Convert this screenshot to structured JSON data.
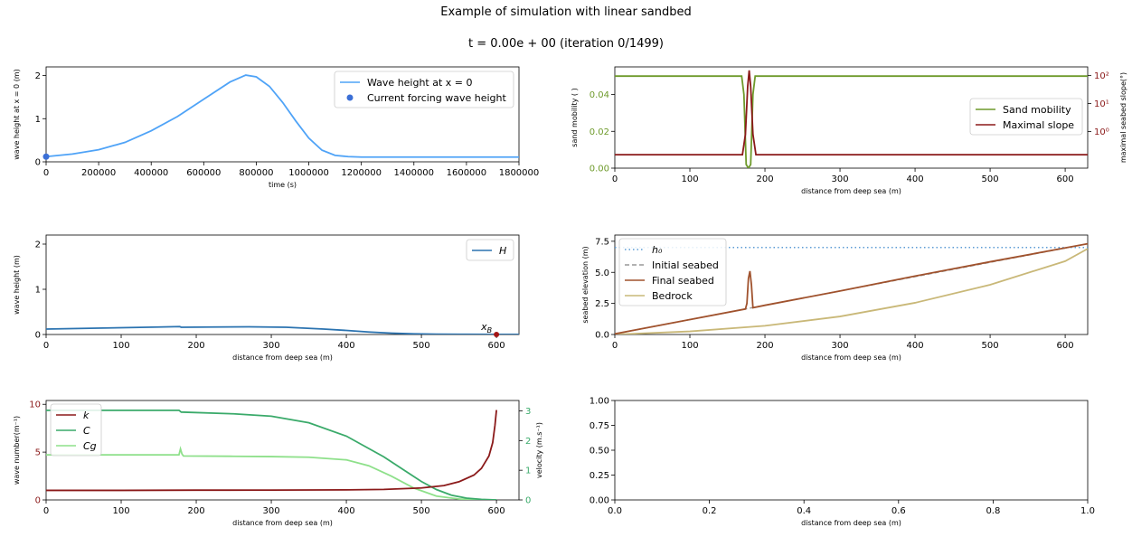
{
  "figure": {
    "title": "Example of simulation with linear sandbed",
    "subtitle": "t = 0.00e + 00  (iteration 0/1499)"
  },
  "colors": {
    "wave_forcing": "#4fa3f7",
    "forcing_dot": "#3b6fd6",
    "H": "#2b73b0",
    "mobility": "#6e9a2b",
    "slope": "#8b1a1a",
    "h0": "#5b9bd5",
    "initial": "#999999",
    "final": "#a0522d",
    "bedrock": "#c9b878",
    "k": "#8b1a1a",
    "C": "#3aaa6a",
    "Cg": "#8ee08a",
    "xB": "#a31515"
  },
  "chart_data": [
    {
      "id": "forcing",
      "type": "line",
      "xlabel": "time (s)",
      "ylabel": "wave height at x = 0 (m)",
      "xlim": [
        0,
        1800000
      ],
      "ylim": [
        0,
        2.2
      ],
      "xticks": [
        0,
        200000,
        400000,
        600000,
        800000,
        1000000,
        1200000,
        1400000,
        1600000,
        1800000
      ],
      "xtick_labels": [
        "0",
        "200000",
        "400000",
        "600000",
        "800000",
        "1000000",
        "1200000",
        "1400000",
        "1600000",
        "1800000"
      ],
      "yticks": [
        0,
        1,
        2
      ],
      "ytick_labels": [
        "0",
        "1",
        "2"
      ],
      "legend": [
        "Wave height at x = 0",
        "Current forcing wave height"
      ],
      "series": [
        {
          "name": "Wave height at x = 0",
          "x": [
            0,
            100000,
            200000,
            300000,
            400000,
            500000,
            600000,
            700000,
            760000,
            800000,
            850000,
            900000,
            950000,
            1000000,
            1050000,
            1100000,
            1150000,
            1200000,
            1400000,
            1600000,
            1800000
          ],
          "y": [
            0.12,
            0.18,
            0.28,
            0.45,
            0.72,
            1.05,
            1.45,
            1.85,
            2.01,
            1.97,
            1.75,
            1.38,
            0.95,
            0.55,
            0.27,
            0.15,
            0.12,
            0.11,
            0.11,
            0.11,
            0.11
          ]
        }
      ],
      "points": [
        {
          "name": "Current forcing wave height",
          "x": 0,
          "y": 0.12
        }
      ]
    },
    {
      "id": "mobility",
      "type": "line",
      "xlabel": "distance from deep sea (m)",
      "ylabel": "sand mobility ( )",
      "y2label": "maximal seabed slope(°)",
      "xlim": [
        0,
        630
      ],
      "ylim": [
        0,
        0.055
      ],
      "y2scale": "log",
      "y2lim": [
        0.05,
        200
      ],
      "xticks": [
        0,
        100,
        200,
        300,
        400,
        500,
        600
      ],
      "xtick_labels": [
        "0",
        "100",
        "200",
        "300",
        "400",
        "500",
        "600"
      ],
      "yticks": [
        0,
        0.02,
        0.04
      ],
      "ytick_labels": [
        "0.00",
        "0.02",
        "0.04"
      ],
      "y2ticks": [
        1,
        10,
        100
      ],
      "y2tick_labels": [
        "10⁰",
        "10¹",
        "10²"
      ],
      "legend": [
        "Sand mobility",
        "Maximal slope"
      ],
      "series": [
        {
          "name": "Sand mobility",
          "axis": "left",
          "x": [
            0,
            169,
            172,
            175,
            178,
            181,
            184,
            187,
            190,
            630
          ],
          "y": [
            0.05,
            0.05,
            0.04,
            0.002,
            0,
            0.002,
            0.04,
            0.05,
            0.05,
            0.05
          ]
        },
        {
          "name": "Maximal slope",
          "axis": "right",
          "x": [
            0,
            170,
            174,
            177,
            179,
            181,
            184,
            188,
            630
          ],
          "y": [
            0.15,
            0.15,
            0.8,
            40,
            150,
            40,
            0.8,
            0.15,
            0.15
          ]
        }
      ]
    },
    {
      "id": "H",
      "type": "line",
      "xlabel": "distance from deep sea (m)",
      "ylabel": "wave height (m)",
      "xlim": [
        0,
        630
      ],
      "ylim": [
        0,
        2.2
      ],
      "xticks": [
        0,
        100,
        200,
        300,
        400,
        500,
        600
      ],
      "xtick_labels": [
        "0",
        "100",
        "200",
        "300",
        "400",
        "500",
        "600"
      ],
      "yticks": [
        0,
        1,
        2
      ],
      "ytick_labels": [
        "0",
        "1",
        "2"
      ],
      "legend": [
        "H"
      ],
      "series": [
        {
          "name": "H",
          "x": [
            0,
            50,
            100,
            150,
            178,
            180,
            220,
            270,
            320,
            370,
            400,
            430,
            460,
            490,
            520,
            560,
            600,
            630
          ],
          "y": [
            0.12,
            0.135,
            0.15,
            0.165,
            0.175,
            0.16,
            0.165,
            0.17,
            0.16,
            0.12,
            0.09,
            0.055,
            0.03,
            0.015,
            0.008,
            0.005,
            0.003,
            0.003
          ]
        }
      ],
      "points": [
        {
          "name": "x_B",
          "x": 600,
          "y": 0.0
        }
      ]
    },
    {
      "id": "seabed",
      "type": "line",
      "xlabel": "distance from deep sea (m)",
      "ylabel": "seabed elevation (m)",
      "xlim": [
        0,
        630
      ],
      "ylim": [
        0,
        8
      ],
      "xticks": [
        0,
        100,
        200,
        300,
        400,
        500,
        600
      ],
      "xtick_labels": [
        "0",
        "100",
        "200",
        "300",
        "400",
        "500",
        "600"
      ],
      "yticks": [
        0,
        2.5,
        5,
        7.5
      ],
      "ytick_labels": [
        "0.0",
        "2.5",
        "5.0",
        "7.5"
      ],
      "legend": [
        "h₀",
        "Initial seabed",
        "Final seabed",
        "Bedrock"
      ],
      "series": [
        {
          "name": "h₀",
          "x": [
            0,
            630
          ],
          "y": [
            7.0,
            7.0
          ]
        },
        {
          "name": "Initial seabed",
          "x": [
            0,
            630
          ],
          "y": [
            0.05,
            7.3
          ]
        },
        {
          "name": "Final seabed",
          "x": [
            0,
            100,
            174,
            176,
            178,
            180,
            182,
            184,
            200,
            300,
            400,
            500,
            630
          ],
          "y": [
            0.05,
            1.2,
            2.05,
            2.5,
            4.5,
            5.1,
            4.0,
            2.15,
            2.35,
            3.5,
            4.7,
            5.85,
            7.3
          ]
        },
        {
          "name": "Bedrock",
          "x": [
            0,
            100,
            200,
            300,
            400,
            500,
            600,
            630
          ],
          "y": [
            0.0,
            0.25,
            0.7,
            1.45,
            2.55,
            4.0,
            5.9,
            6.9
          ]
        }
      ]
    },
    {
      "id": "kc",
      "type": "line",
      "xlabel": "distance from deep sea (m)",
      "ylabel": "wave number(m⁻¹)",
      "y2label": "velocity (m.s⁻¹)",
      "xlim": [
        0,
        630
      ],
      "ylim": [
        0,
        10.4
      ],
      "y2lim": [
        0,
        3.35
      ],
      "xticks": [
        0,
        100,
        200,
        300,
        400,
        500,
        600
      ],
      "xtick_labels": [
        "0",
        "100",
        "200",
        "300",
        "400",
        "500",
        "600"
      ],
      "yticks": [
        0,
        5,
        10
      ],
      "ytick_labels": [
        "0",
        "5",
        "10"
      ],
      "y2ticks": [
        0,
        1,
        2,
        3
      ],
      "y2tick_labels": [
        "0",
        "1",
        "2",
        "3"
      ],
      "legend": [
        "k",
        "C",
        "Cg"
      ],
      "series": [
        {
          "name": "k",
          "axis": "left",
          "x": [
            0,
            100,
            200,
            300,
            400,
            450,
            500,
            530,
            550,
            570,
            580,
            590,
            595,
            598,
            600
          ],
          "y": [
            1.0,
            1.0,
            1.02,
            1.03,
            1.05,
            1.1,
            1.25,
            1.5,
            1.9,
            2.6,
            3.3,
            4.6,
            6.0,
            7.8,
            9.4
          ]
        },
        {
          "name": "C",
          "axis": "right",
          "x": [
            0,
            177,
            180,
            250,
            300,
            350,
            400,
            450,
            480,
            500,
            520,
            540,
            560,
            580,
            600
          ],
          "y": [
            3.02,
            3.02,
            2.96,
            2.9,
            2.82,
            2.6,
            2.15,
            1.45,
            0.95,
            0.62,
            0.35,
            0.16,
            0.06,
            0.02,
            0.0
          ]
        },
        {
          "name": "Cg",
          "axis": "right",
          "x": [
            0,
            177,
            179,
            181,
            183,
            250,
            300,
            350,
            400,
            430,
            460,
            490,
            520,
            550,
            580,
            600
          ],
          "y": [
            1.52,
            1.52,
            1.72,
            1.55,
            1.48,
            1.47,
            1.46,
            1.44,
            1.35,
            1.15,
            0.8,
            0.4,
            0.13,
            0.03,
            0.0,
            0.0
          ]
        }
      ]
    },
    {
      "id": "empty",
      "type": "line",
      "xlabel": "distance from deep sea (m)",
      "ylabel": "",
      "xlim": [
        0,
        1
      ],
      "ylim": [
        0,
        1
      ],
      "xticks": [
        0,
        0.2,
        0.4,
        0.6,
        0.8,
        1.0
      ],
      "xtick_labels": [
        "0.0",
        "0.2",
        "0.4",
        "0.6",
        "0.8",
        "1.0"
      ],
      "yticks": [
        0,
        0.25,
        0.5,
        0.75,
        1.0
      ],
      "ytick_labels": [
        "0.00",
        "0.25",
        "0.50",
        "0.75",
        "1.00"
      ],
      "legend": [],
      "series": []
    }
  ]
}
